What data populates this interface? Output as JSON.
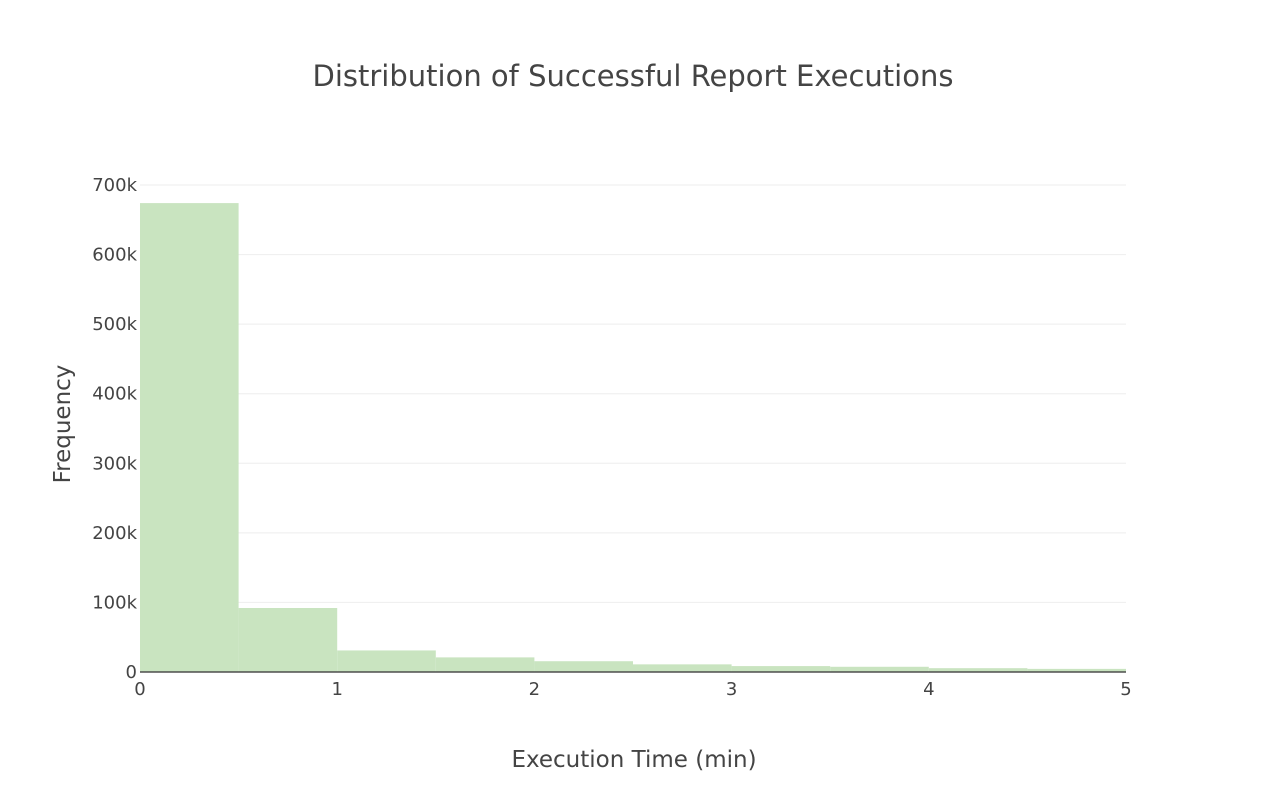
{
  "chart_data": {
    "type": "bar",
    "title": "Distribution of Successful Report Executions",
    "xlabel": "Execution Time (min)",
    "ylabel": "Frequency",
    "bin_width": 0.5,
    "bins": [
      {
        "x0": 0,
        "x1": 0.5,
        "value": 674000
      },
      {
        "x0": 0.5,
        "x1": 1,
        "value": 92000
      },
      {
        "x0": 1,
        "x1": 1.5,
        "value": 31000
      },
      {
        "x0": 1.5,
        "x1": 2,
        "value": 21000
      },
      {
        "x0": 2,
        "x1": 2.5,
        "value": 15500
      },
      {
        "x0": 2.5,
        "x1": 3,
        "value": 11000
      },
      {
        "x0": 3,
        "x1": 3.5,
        "value": 8500
      },
      {
        "x0": 3.5,
        "x1": 4,
        "value": 7500
      },
      {
        "x0": 4,
        "x1": 4.5,
        "value": 5500
      },
      {
        "x0": 4.5,
        "x1": 5,
        "value": 4500
      }
    ],
    "xlim": [
      0,
      5
    ],
    "ylim": [
      0,
      700000
    ],
    "x_ticks": [
      "0",
      "1",
      "2",
      "3",
      "4",
      "5"
    ],
    "x_tick_values": [
      0,
      1,
      2,
      3,
      4,
      5
    ],
    "y_ticks": [
      "0",
      "100k",
      "200k",
      "300k",
      "400k",
      "500k",
      "600k",
      "700k"
    ],
    "y_tick_values": [
      0,
      100000,
      200000,
      300000,
      400000,
      500000,
      600000,
      700000
    ],
    "bar_color": "#c9e4c0",
    "grid": true,
    "legend": false
  }
}
